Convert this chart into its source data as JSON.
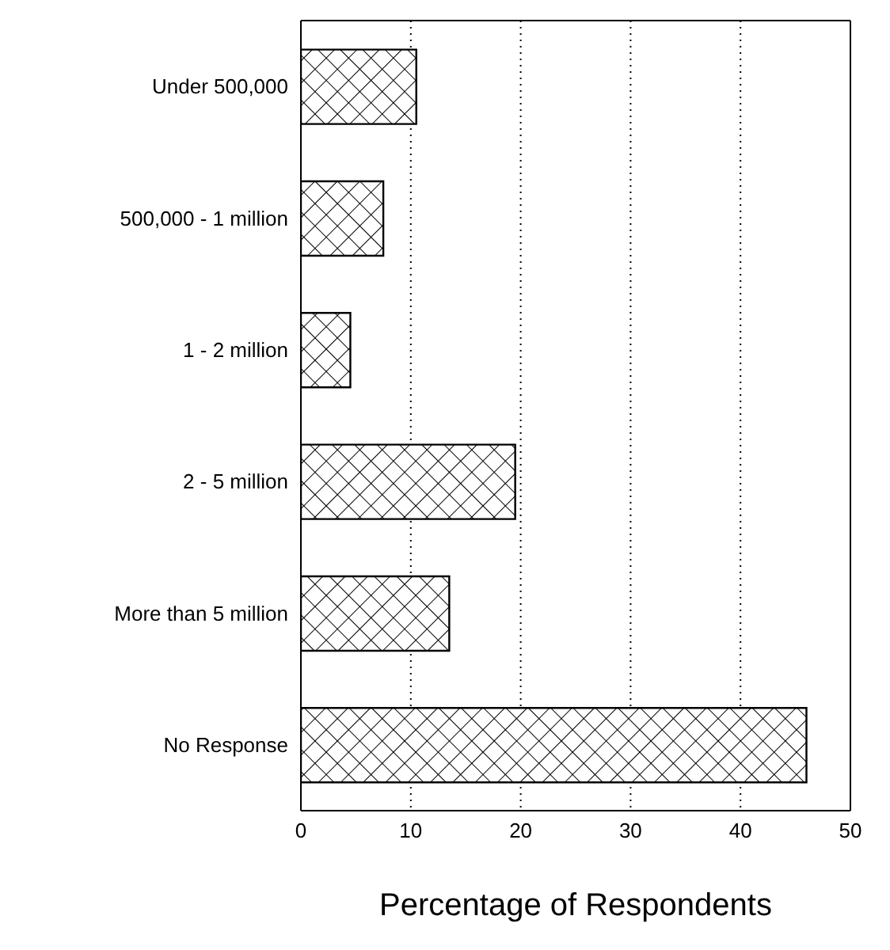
{
  "chart_data": {
    "type": "bar",
    "orientation": "horizontal",
    "xlabel": "Percentage of Respondents",
    "categories": [
      "Under 500,000",
      "500,000 - 1 million",
      "1 - 2 million",
      "2 - 5 million",
      "More than 5 million",
      "No Response"
    ],
    "values": [
      10.5,
      7.5,
      4.5,
      19.5,
      13.5,
      46
    ],
    "color": "#000000",
    "xlim": [
      0,
      50
    ],
    "xticks": [
      0,
      10,
      20,
      30,
      40,
      50
    ],
    "grid": "x"
  }
}
